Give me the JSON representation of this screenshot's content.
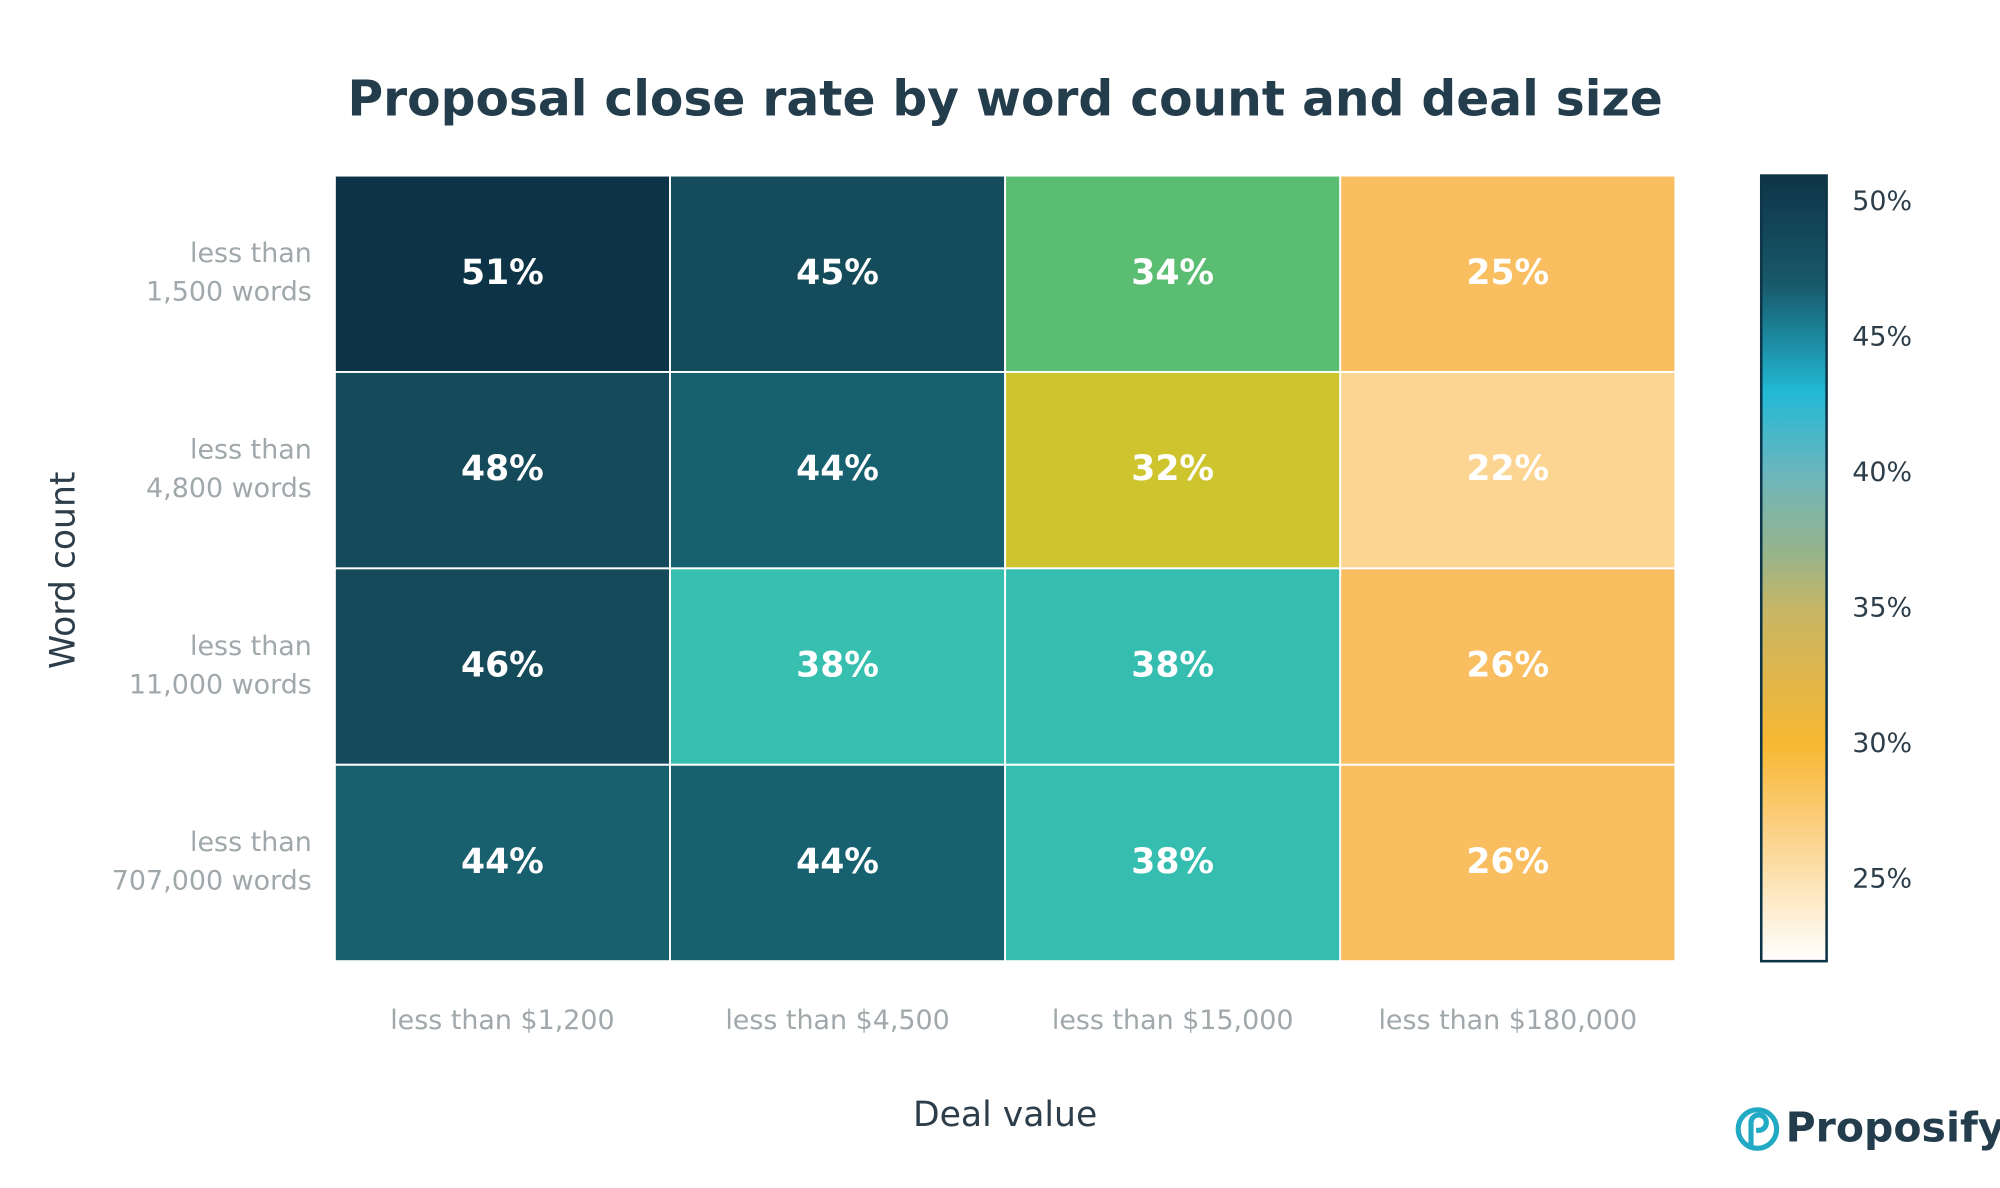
{
  "chart_data": {
    "type": "heatmap",
    "title": "Proposal close rate by word count and deal size",
    "x_label": "Deal value",
    "y_label": "Word count",
    "x_categories": [
      "less than $1,200",
      "less than $4,500",
      "less than $15,000",
      "less than $180,000"
    ],
    "y_categories": [
      [
        "less than",
        "1,500 words"
      ],
      [
        "less than",
        "4,800 words"
      ],
      [
        "less than",
        "11,000 words"
      ],
      [
        "less than",
        "707,000 words"
      ]
    ],
    "values": [
      [
        51,
        45,
        34,
        25
      ],
      [
        48,
        44,
        32,
        22
      ],
      [
        46,
        38,
        38,
        26
      ],
      [
        44,
        44,
        38,
        26
      ]
    ],
    "value_labels": [
      [
        "51%",
        "45%",
        "34%",
        "25%"
      ],
      [
        "48%",
        "44%",
        "32%",
        "22%"
      ],
      [
        "46%",
        "38%",
        "38%",
        "26%"
      ],
      [
        "44%",
        "44%",
        "38%",
        "26%"
      ]
    ],
    "colors": [
      [
        "#0d3446",
        "#154c5c",
        "#5abd72",
        "#f8be60"
      ],
      [
        "#154a5a",
        "#17606f",
        "#cdc42e",
        "#fcd592"
      ],
      [
        "#154a5a",
        "#37bfb0",
        "#35bdb0",
        "#f8be60"
      ],
      [
        "#18606e",
        "#17606f",
        "#35bdb0",
        "#f8be60"
      ]
    ],
    "zlim": [
      22,
      51
    ],
    "zticks": [
      {
        "value": 25,
        "label": "25%"
      },
      {
        "value": 30,
        "label": "30%"
      },
      {
        "value": 35,
        "label": "35%"
      },
      {
        "value": 40,
        "label": "40%"
      },
      {
        "value": 45,
        "label": "45%"
      },
      {
        "value": 50,
        "label": "50%"
      }
    ],
    "colorscale": [
      [
        22,
        "#ffffff"
      ],
      [
        27,
        "#fccf80"
      ],
      [
        30,
        "#f8b732"
      ],
      [
        35,
        "#c6b665"
      ],
      [
        37,
        "#98b48a"
      ],
      [
        40,
        "#6cb6bd"
      ],
      [
        43,
        "#22b9d5"
      ],
      [
        47,
        "#17596a"
      ],
      [
        51,
        "#0e3447"
      ]
    ]
  },
  "brand": "Proposify"
}
